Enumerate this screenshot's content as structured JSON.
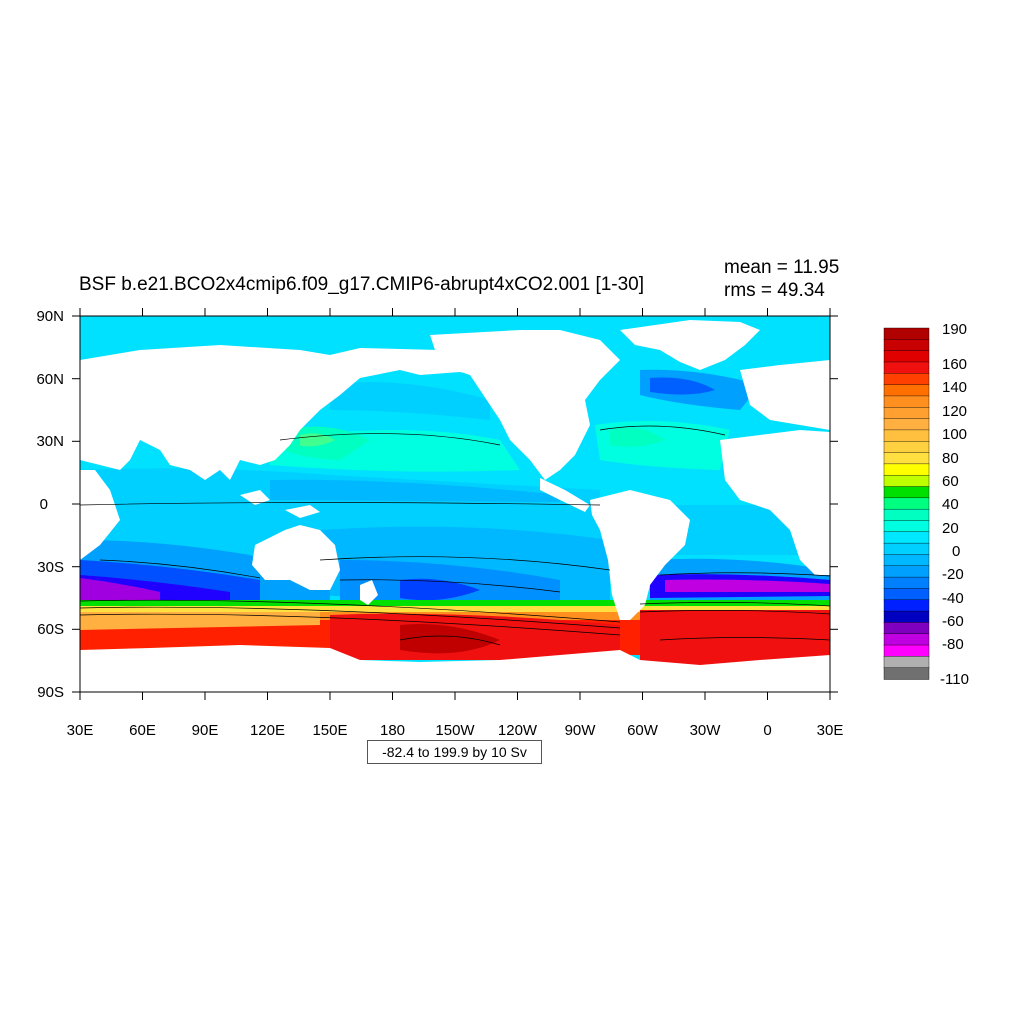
{
  "figure": {
    "title": "BSF b.e21.BCO2x4cmip6.f09_g17.CMIP6-abrupt4xCO2.001 [1-30]",
    "mean_label": "mean = 11.95",
    "rms_label": "rms = 49.34",
    "range_label": "-82.4 to 199.9 by 10 Sv"
  },
  "map": {
    "lon_labels": [
      "30E",
      "60E",
      "90E",
      "120E",
      "150E",
      "180",
      "150W",
      "120W",
      "90W",
      "60W",
      "30W",
      "0",
      "30E"
    ],
    "lat_labels": [
      "90N",
      "60N",
      "30N",
      "0",
      "30S",
      "60S",
      "90S"
    ],
    "land_color": "#ffffff",
    "ocean_base_color": "#00e0ff"
  },
  "colorbar": {
    "labels": [
      "190",
      "160",
      "140",
      "120",
      "100",
      "80",
      "60",
      "40",
      "20",
      "0",
      "-20",
      "-40",
      "-60",
      "-80",
      "-110"
    ],
    "colors_top_to_bottom": [
      "#b00000",
      "#c80000",
      "#e00000",
      "#f01010",
      "#ff4000",
      "#ff7000",
      "#ff9020",
      "#ffa030",
      "#ffb040",
      "#ffc040",
      "#ffd040",
      "#ffe040",
      "#ffff00",
      "#c0ff00",
      "#00e000",
      "#00ff80",
      "#00ffc0",
      "#00ffe0",
      "#00e8ff",
      "#00d0ff",
      "#00b8ff",
      "#00a0ff",
      "#0080ff",
      "#0060ff",
      "#0020ff",
      "#0000c0",
      "#8000c0",
      "#c000e0",
      "#ff00ff",
      "#b0b0b0",
      "#707070"
    ]
  }
}
